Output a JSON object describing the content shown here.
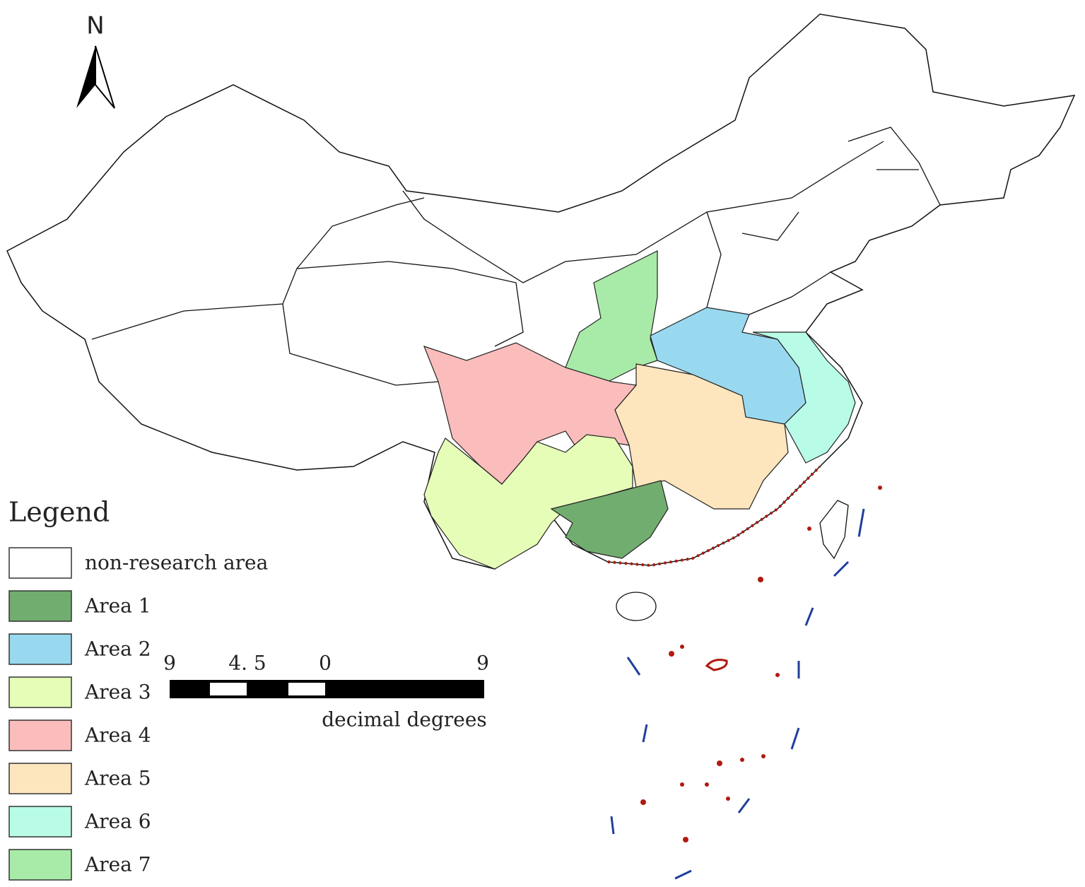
{
  "north_arrow": {
    "label": "N"
  },
  "legend": {
    "title": "Legend",
    "items": [
      {
        "label": "non-research area",
        "color": "#ffffff"
      },
      {
        "label": "Area 1",
        "color": "#72ad70"
      },
      {
        "label": "Area 2",
        "color": "#99d9f0"
      },
      {
        "label": "Area 3",
        "color": "#e6fdb8"
      },
      {
        "label": "Area 4",
        "color": "#fbbcbc"
      },
      {
        "label": "Area 5",
        "color": "#fde5bd"
      },
      {
        "label": "Area 6",
        "color": "#b8fce8"
      },
      {
        "label": "Area 7",
        "color": "#a8eba8"
      }
    ]
  },
  "scale_bar": {
    "labels": [
      "9",
      "4. 5",
      "0",
      "9"
    ],
    "unit": "decimal degrees"
  }
}
